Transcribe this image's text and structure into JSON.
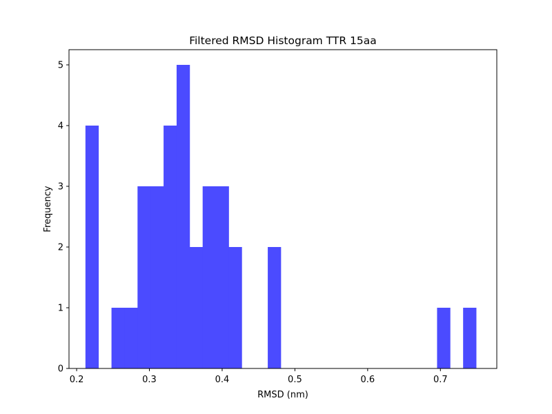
{
  "chart_data": {
    "type": "bar",
    "title": "Filtered RMSD Histogram TTR 15aa",
    "xlabel": "RMSD (nm)",
    "ylabel": "Frequency",
    "xlim": [
      0.1895,
      0.7775
    ],
    "ylim": [
      0,
      5.25
    ],
    "xticks": [
      0.2,
      0.3,
      0.4,
      0.5,
      0.6,
      0.7
    ],
    "xtick_labels": [
      "0.2",
      "0.3",
      "0.4",
      "0.5",
      "0.6",
      "0.7"
    ],
    "yticks": [
      0,
      1,
      2,
      3,
      4,
      5
    ],
    "ytick_labels": [
      "0",
      "1",
      "2",
      "3",
      "4",
      "5"
    ],
    "bins": [
      {
        "x0": 0.2121,
        "x1": 0.23,
        "count": 4
      },
      {
        "x0": 0.23,
        "x1": 0.2479,
        "count": 0
      },
      {
        "x0": 0.2479,
        "x1": 0.2658,
        "count": 1
      },
      {
        "x0": 0.2658,
        "x1": 0.2837,
        "count": 1
      },
      {
        "x0": 0.2837,
        "x1": 0.3016,
        "count": 3
      },
      {
        "x0": 0.3016,
        "x1": 0.3195,
        "count": 3
      },
      {
        "x0": 0.3195,
        "x1": 0.3374,
        "count": 4
      },
      {
        "x0": 0.3374,
        "x1": 0.3553,
        "count": 5
      },
      {
        "x0": 0.3553,
        "x1": 0.3732,
        "count": 2
      },
      {
        "x0": 0.3732,
        "x1": 0.3911,
        "count": 3
      },
      {
        "x0": 0.3911,
        "x1": 0.409,
        "count": 3
      },
      {
        "x0": 0.409,
        "x1": 0.4269,
        "count": 2
      },
      {
        "x0": 0.4269,
        "x1": 0.4448,
        "count": 0
      },
      {
        "x0": 0.4448,
        "x1": 0.4627,
        "count": 0
      },
      {
        "x0": 0.4627,
        "x1": 0.4806,
        "count": 2
      },
      {
        "x0": 0.4806,
        "x1": 0.4985,
        "count": 0
      },
      {
        "x0": 0.4985,
        "x1": 0.5164,
        "count": 0
      },
      {
        "x0": 0.5164,
        "x1": 0.5343,
        "count": 0
      },
      {
        "x0": 0.5343,
        "x1": 0.5522,
        "count": 0
      },
      {
        "x0": 0.5522,
        "x1": 0.5701,
        "count": 0
      },
      {
        "x0": 0.5701,
        "x1": 0.588,
        "count": 0
      },
      {
        "x0": 0.588,
        "x1": 0.6059,
        "count": 0
      },
      {
        "x0": 0.6059,
        "x1": 0.6238,
        "count": 0
      },
      {
        "x0": 0.6238,
        "x1": 0.6417,
        "count": 0
      },
      {
        "x0": 0.6417,
        "x1": 0.6596,
        "count": 0
      },
      {
        "x0": 0.6596,
        "x1": 0.6775,
        "count": 0
      },
      {
        "x0": 0.6775,
        "x1": 0.6954,
        "count": 0
      },
      {
        "x0": 0.6954,
        "x1": 0.7133,
        "count": 1
      },
      {
        "x0": 0.7133,
        "x1": 0.7312,
        "count": 0
      },
      {
        "x0": 0.7312,
        "x1": 0.7491,
        "count": 1
      }
    ],
    "bar_color": "#4b4bff",
    "grid": false,
    "legend": "none"
  }
}
